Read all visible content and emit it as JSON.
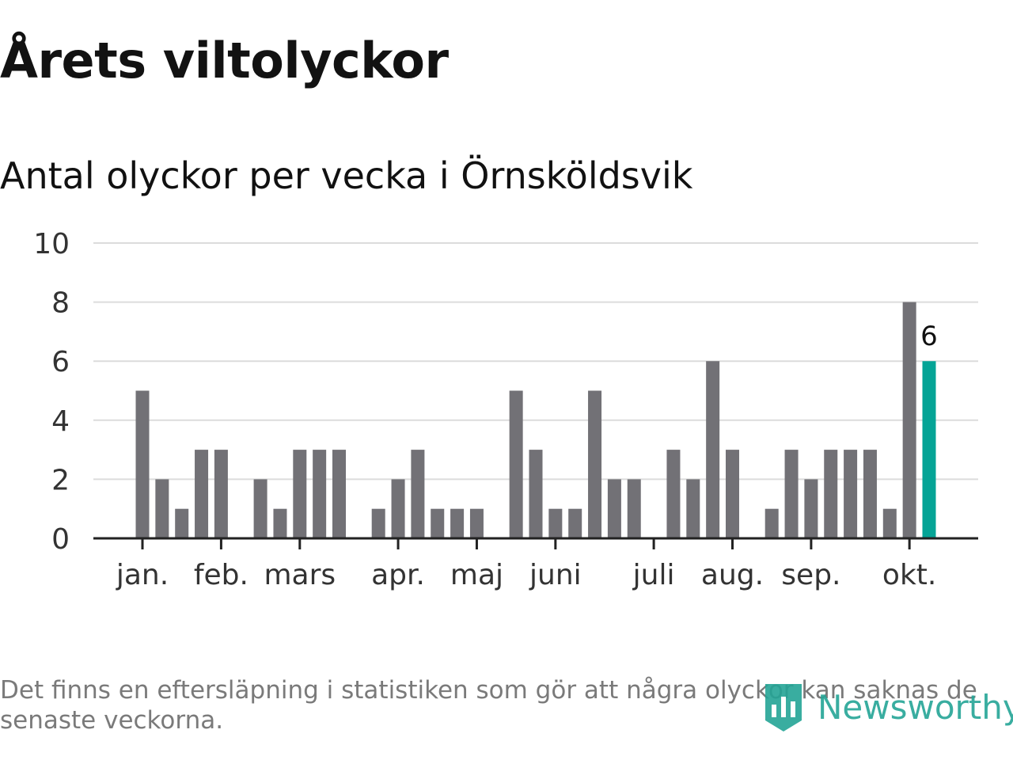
{
  "header": {
    "title": "Årets viltolyckor",
    "subtitle": "Antal olyckor per vecka i Örnsköldsvik"
  },
  "footer": {
    "note": "Det finns en eftersläpning i statistiken som gör att några olyckor kan saknas de senaste veckorna.",
    "brand": "Newsworthy"
  },
  "colors": {
    "bar": "#727176",
    "highlight": "#05a496",
    "grid": "#dcdcdc",
    "axis": "#222222",
    "tick_label": "#333333",
    "brand": "#24a596"
  },
  "chart_data": {
    "type": "bar",
    "weeks": [
      1,
      2,
      3,
      4,
      5,
      6,
      7,
      8,
      9,
      10,
      11,
      12,
      13,
      14,
      15,
      16,
      17,
      18,
      19,
      20,
      21,
      22,
      23,
      24,
      25,
      26,
      27,
      28,
      29,
      30,
      31,
      32,
      33,
      34,
      35,
      36,
      37,
      38,
      39,
      40,
      41,
      42,
      43
    ],
    "values": [
      5,
      2,
      1,
      3,
      3,
      0,
      2,
      1,
      3,
      3,
      3,
      0,
      1,
      2,
      3,
      1,
      1,
      1,
      0,
      5,
      3,
      1,
      1,
      5,
      2,
      2,
      0,
      3,
      2,
      6,
      3,
      0,
      1,
      3,
      2,
      3,
      3,
      3,
      1,
      8,
      6,
      0,
      0
    ],
    "highlight_week": 41,
    "highlight_label": "6",
    "yticks": [
      0,
      2,
      4,
      6,
      8,
      10
    ],
    "ylim": [
      0,
      10
    ],
    "month_ticks": [
      {
        "label": "jan.",
        "week": 1
      },
      {
        "label": "feb.",
        "week": 5
      },
      {
        "label": "mars",
        "week": 9
      },
      {
        "label": "apr.",
        "week": 14
      },
      {
        "label": "maj",
        "week": 18
      },
      {
        "label": "juni",
        "week": 22
      },
      {
        "label": "juli",
        "week": 27
      },
      {
        "label": "aug.",
        "week": 31
      },
      {
        "label": "sep.",
        "week": 35
      },
      {
        "label": "okt.",
        "week": 40
      }
    ],
    "grid": true,
    "legend": "none"
  }
}
